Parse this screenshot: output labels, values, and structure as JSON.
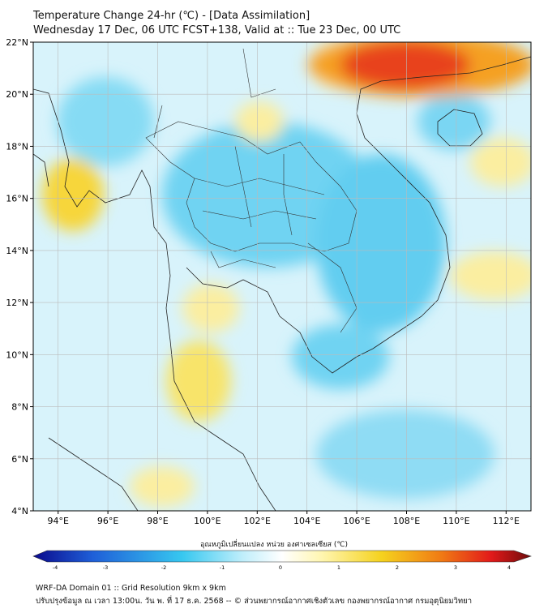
{
  "header": {
    "title": "Temperature Change 24-hr (℃) - [Data Assimilation]",
    "subtitle": "Wednesday 17 Dec, 06 UTC FCST+138, Valid at :: Tue 23 Dec, 00 UTC"
  },
  "map": {
    "lon_range": [
      93,
      113
    ],
    "lat_range": [
      4,
      22
    ],
    "lon_ticks": [
      "94°E",
      "96°E",
      "98°E",
      "100°E",
      "102°E",
      "104°E",
      "106°E",
      "108°E",
      "110°E",
      "112°E"
    ],
    "lat_ticks": [
      "4°N",
      "6°N",
      "8°N",
      "10°N",
      "12°N",
      "14°N",
      "16°N",
      "18°N",
      "20°N",
      "22°N"
    ],
    "lon_values": [
      94,
      96,
      98,
      100,
      102,
      104,
      106,
      108,
      110,
      112
    ],
    "lat_values": [
      4,
      6,
      8,
      10,
      12,
      14,
      16,
      18,
      20,
      22
    ]
  },
  "colorbar": {
    "label": "อุณหภูมิเปลี่ยนแปลง หน่วย องศาเซลเซียส (℃)",
    "ticks": [
      "-4",
      "-3",
      "-2",
      "-1",
      "0",
      "1",
      "2",
      "3",
      "4"
    ],
    "tick_values": [
      -4,
      -3,
      -2,
      -1,
      0,
      1,
      2,
      3,
      4
    ],
    "colors": {
      "dark_blue": "#0a0a8c",
      "blue": "#1f5fd8",
      "cyan": "#37c8f0",
      "light_cyan": "#bfeefb",
      "white": "#ffffff",
      "light_yellow": "#fff6b0",
      "yellow": "#f5d21e",
      "orange": "#f07a14",
      "red": "#e21a1a",
      "dark_red": "#6e0b0b"
    }
  },
  "footer": {
    "line1": "WRF-DA Domain 01 :: Grid Resolution 9km x 9km",
    "line2": "ปรับปรุงข้อมูล ณ เวลา 13:00น. วัน พ. ที่ 17 ธ.ค. 2568 -- © ส่วนพยากรณ์อากาศเชิงตัวเลข กองพยากรณ์อากาศ กรมอุตุนิยมวิทยา"
  }
}
